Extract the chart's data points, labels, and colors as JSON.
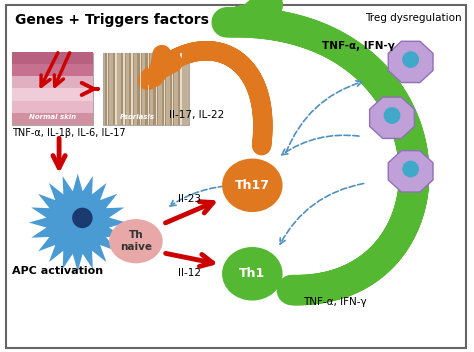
{
  "title": "Genes + Triggers factors",
  "treg_label": "Treg dysregulation",
  "tnf_ifn_top": "TNF-α, IFN-γ",
  "il17_il22": "Il-17, IL-22",
  "il23": "Il-23",
  "il12": "Il-12",
  "tnf_ifn_bottom": "TNF-α, IFN-γ",
  "cytokines_label": "TNF-α, IL-1β, IL-6, IL-17",
  "apc_label": "APC activation",
  "th_naive_label": "Th\nnaive",
  "th17_label": "Th17",
  "th1_label": "Th1",
  "normal_skin_label": "Normal skin",
  "psoriasis_label": "Psoriasis",
  "white": "#ffffff",
  "blue_cell": "#4a9ad4",
  "orange_cell": "#e07820",
  "green_cell": "#55b832",
  "pink_cell": "#e8a0a0",
  "purple_cell": "#b090c0",
  "cyan_cell": "#40a8c8",
  "red_arrow": "#cc0000",
  "green_arrow": "#55b832",
  "orange_arrow": "#e07820",
  "dashed_arrow": "#5090c0",
  "border_color": "#666666"
}
